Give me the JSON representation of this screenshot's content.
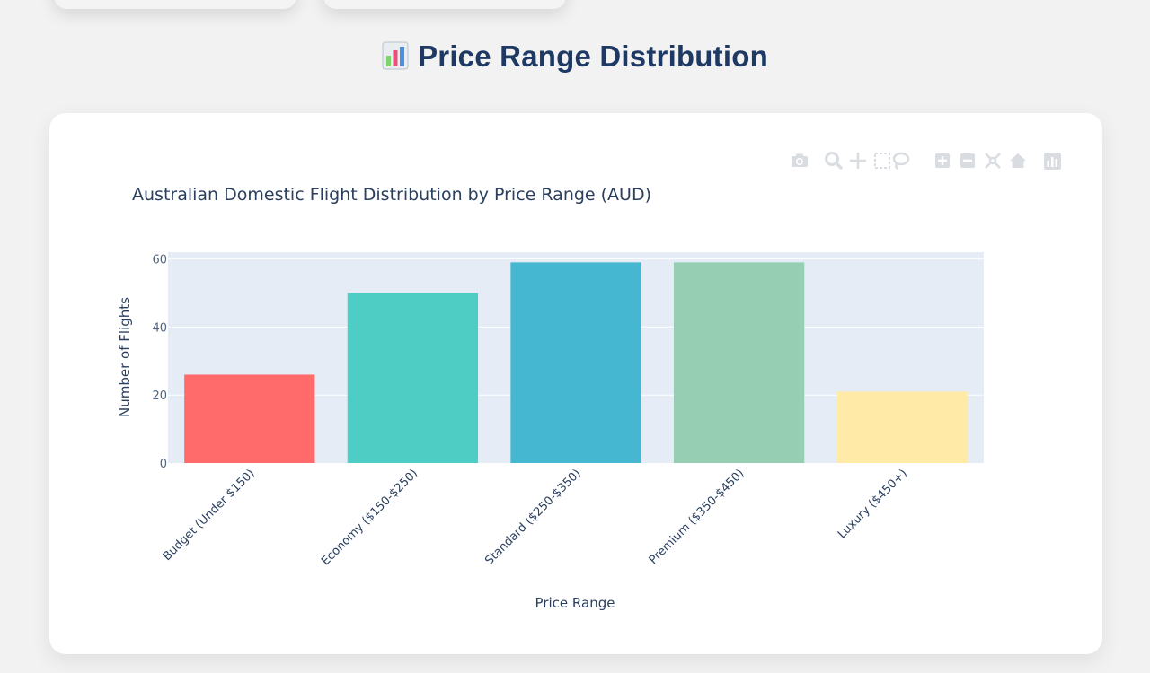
{
  "header": {
    "title": "Price Range Distribution",
    "icon": "bar-chart-icon"
  },
  "modebar": {
    "icons": [
      "camera-icon",
      "zoom-icon",
      "pan-icon",
      "box-select-icon",
      "lasso-select-icon",
      "zoom-in-icon",
      "zoom-out-icon",
      "autoscale-icon",
      "reset-axes-icon",
      "plotly-logo-icon"
    ]
  },
  "chart_data": {
    "type": "bar",
    "title": "Australian Domestic Flight Distribution by Price Range (AUD)",
    "xlabel": "Price Range",
    "ylabel": "Number of Flights",
    "categories": [
      "Budget (Under $150)",
      "Economy ($150-$250)",
      "Standard ($250-$350)",
      "Premium ($350-$450)",
      "Luxury ($450+)"
    ],
    "values": [
      26,
      50,
      59,
      59,
      21
    ],
    "colors": [
      "#ff6b6b",
      "#4ecdc4",
      "#45b7d1",
      "#96ceb4",
      "#ffeaa7"
    ],
    "ylim": [
      0,
      62
    ],
    "yticks": [
      0,
      20,
      40,
      60
    ],
    "grid": true,
    "legend": "none"
  }
}
